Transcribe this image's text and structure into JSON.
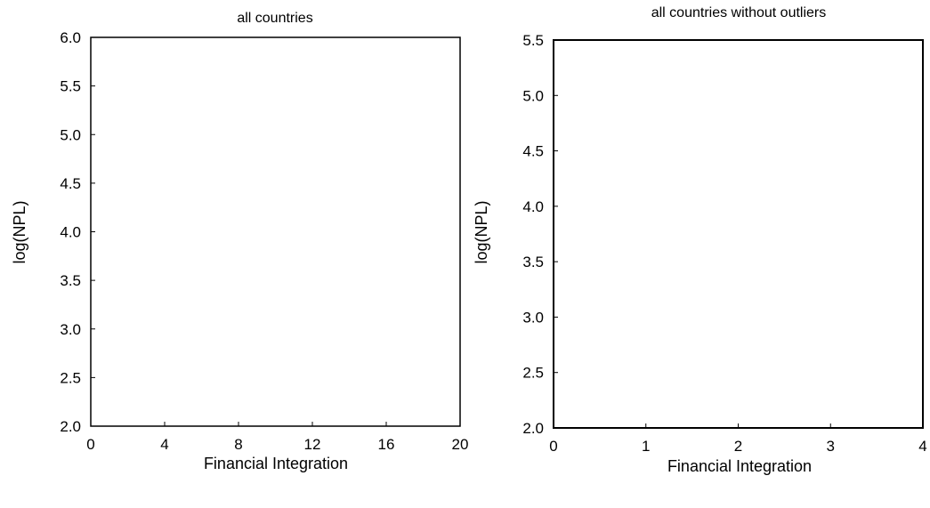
{
  "chart_data": [
    {
      "type": "scatter",
      "title": "all countries",
      "xlabel": "Financial Integration",
      "ylabel": "log(NPL)",
      "xlim": [
        0,
        20
      ],
      "ylim": [
        2.0,
        6.0
      ],
      "xticks": [
        0,
        4,
        8,
        12,
        16,
        20
      ],
      "yticks": [
        2.0,
        2.5,
        3.0,
        3.5,
        4.0,
        4.5,
        5.0,
        5.5,
        6.0
      ],
      "xtick_labels": [
        "0",
        "4",
        "8",
        "12",
        "16",
        "20"
      ],
      "ytick_labels": [
        "2.0",
        "2.5",
        "3.0",
        "3.5",
        "4.0",
        "4.5",
        "5.0",
        "5.5",
        "6.0"
      ],
      "grid": false,
      "series": [
        {
          "x": [],
          "y": []
        }
      ]
    },
    {
      "type": "scatter",
      "title": "all countries without outliers",
      "xlabel": "Financial Integration",
      "ylabel": "log(NPL)",
      "xlim": [
        0,
        4
      ],
      "ylim": [
        2.0,
        5.5
      ],
      "xticks": [
        0,
        1,
        2,
        3,
        4
      ],
      "yticks": [
        2.0,
        2.5,
        3.0,
        3.5,
        4.0,
        4.5,
        5.0,
        5.5
      ],
      "xtick_labels": [
        "0",
        "1",
        "2",
        "3",
        "4"
      ],
      "ytick_labels": [
        "2.0",
        "2.5",
        "3.0",
        "3.5",
        "4.0",
        "4.5",
        "5.0",
        "5.5"
      ],
      "grid": false,
      "series": [
        {
          "x": [],
          "y": []
        }
      ]
    }
  ]
}
